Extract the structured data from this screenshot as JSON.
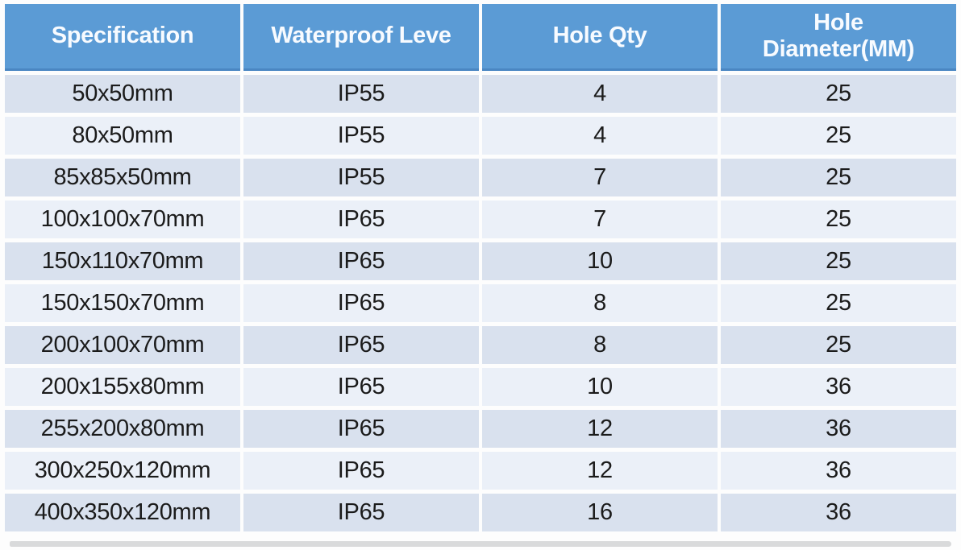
{
  "chart_data": {
    "type": "table",
    "title": "",
    "columns": [
      "Specification",
      "Waterproof Leve",
      "Hole Qty",
      "Hole Diameter(MM)"
    ],
    "rows": [
      [
        "50x50mm",
        "IP55",
        "4",
        "25"
      ],
      [
        "80x50mm",
        "IP55",
        "4",
        "25"
      ],
      [
        "85x85x50mm",
        "IP55",
        "7",
        "25"
      ],
      [
        "100x100x70mm",
        "IP65",
        "7",
        "25"
      ],
      [
        "150x110x70mm",
        "IP65",
        "10",
        "25"
      ],
      [
        "150x150x70mm",
        "IP65",
        "8",
        "25"
      ],
      [
        "200x100x70mm",
        "IP65",
        "8",
        "25"
      ],
      [
        "200x155x80mm",
        "IP65",
        "10",
        "36"
      ],
      [
        "255x200x80mm",
        "IP65",
        "12",
        "36"
      ],
      [
        "300x250x120mm",
        "IP65",
        "12",
        "36"
      ],
      [
        "400x350x120mm",
        "IP65",
        "16",
        "36"
      ]
    ]
  },
  "colors": {
    "header_bg": "#5b9bd5",
    "header_edge": "#4a86c2",
    "header_text": "#f8fbff",
    "row_odd_bg": "#d9e1ee",
    "row_even_bg": "#ebf0f8",
    "cell_text": "#1b1b1b",
    "page_bg": "#fdfdfd",
    "shadow": "#d9dadb"
  }
}
